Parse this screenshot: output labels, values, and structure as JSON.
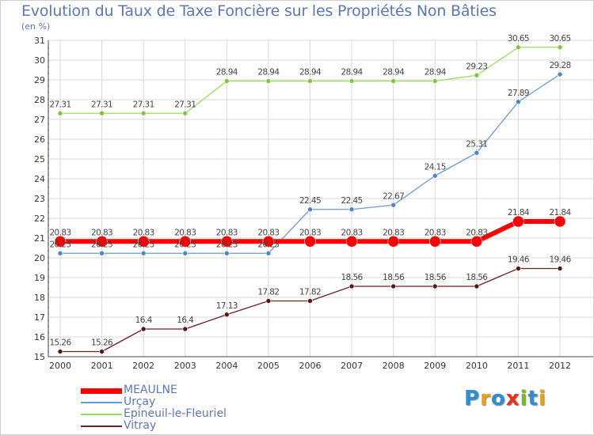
{
  "title": "Evolution du Taux de Taxe Foncière sur les Propriétés Non Bâties",
  "unit": "(en %)",
  "brand": "Proxiti",
  "colors": {
    "title": "#5b78b4",
    "grid": "#d9d9d9",
    "MEAULNE": "#ff0000",
    "Urçay": "#6b9bd1",
    "Epineuil-le-Fleuriel": "#99dd55",
    "Vitray": "#6b2222"
  },
  "chart_data": {
    "type": "line",
    "title": "Evolution du Taux de Taxe Foncière sur les Propriétés Non Bâties",
    "ylabel": "(en %)",
    "xlabel": "",
    "x": [
      "2000",
      "2001",
      "2002",
      "2003",
      "2004",
      "2005",
      "2006",
      "2007",
      "2008",
      "2009",
      "2010",
      "2011",
      "2012"
    ],
    "ylim": [
      15,
      31
    ],
    "yticks": [
      15,
      16,
      17,
      18,
      19,
      20,
      21,
      22,
      23,
      24,
      25,
      26,
      27,
      28,
      29,
      30,
      31
    ],
    "grid": true,
    "legend": "bottom-left",
    "series": [
      {
        "name": "MEAULNE",
        "values": [
          20.83,
          20.83,
          20.83,
          20.83,
          20.83,
          20.83,
          20.83,
          20.83,
          20.83,
          20.83,
          20.83,
          21.84,
          21.84
        ]
      },
      {
        "name": "Urçay",
        "values": [
          20.23,
          20.23,
          20.23,
          20.23,
          20.23,
          20.23,
          22.45,
          22.45,
          22.67,
          24.15,
          25.31,
          27.89,
          29.28
        ]
      },
      {
        "name": "Epineuil-le-Fleuriel",
        "values": [
          27.31,
          27.31,
          27.31,
          27.31,
          28.94,
          28.94,
          28.94,
          28.94,
          28.94,
          28.94,
          29.23,
          30.65,
          30.65
        ]
      },
      {
        "name": "Vitray",
        "values": [
          15.26,
          15.26,
          16.4,
          16.4,
          17.13,
          17.82,
          17.82,
          18.56,
          18.56,
          18.56,
          18.56,
          19.46,
          19.46
        ]
      }
    ]
  }
}
